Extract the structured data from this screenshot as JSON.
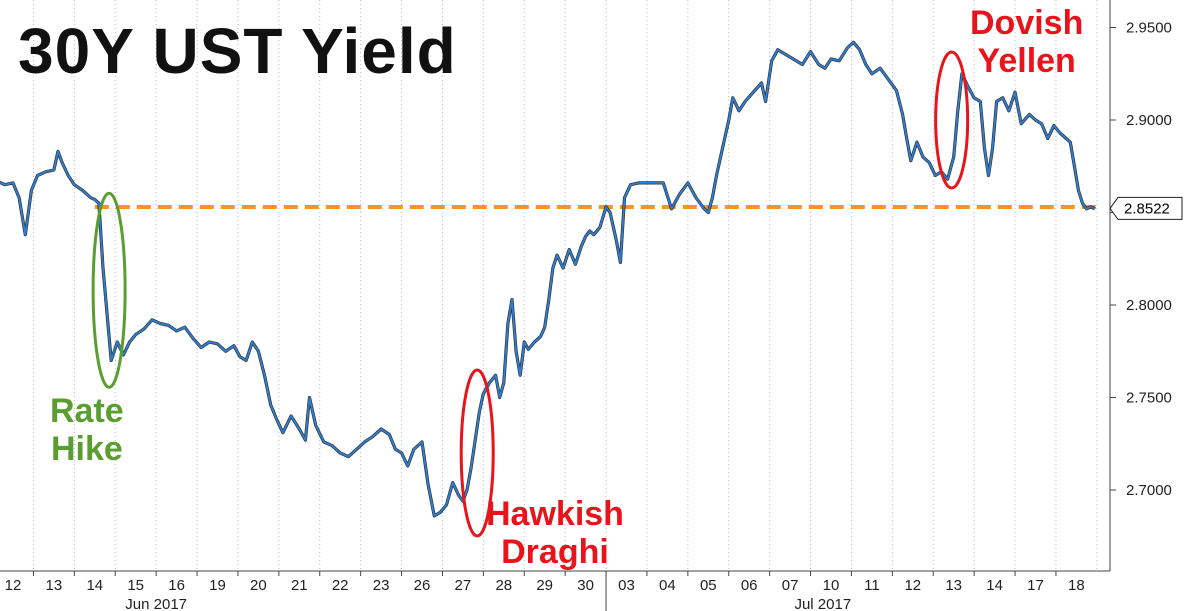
{
  "chart_data": {
    "type": "line",
    "title": "30Y UST Yield",
    "y_axis": {
      "side": "right",
      "ticks": [
        "2.9500",
        "2.9000",
        "2.8500",
        "2.8000",
        "2.7500",
        "2.7000"
      ],
      "tick_values": [
        2.95,
        2.9,
        2.85,
        2.8,
        2.75,
        2.7
      ],
      "ylim": [
        2.655,
        2.97
      ]
    },
    "x_axis": {
      "day_labels": [
        "12",
        "13",
        "14",
        "15",
        "16",
        "19",
        "20",
        "21",
        "22",
        "23",
        "26",
        "27",
        "28",
        "29",
        "30",
        "03",
        "04",
        "05",
        "06",
        "07",
        "10",
        "11",
        "12",
        "13",
        "14",
        "17",
        "18"
      ],
      "month_labels": [
        {
          "label": "Jun 2017",
          "index": 3.5
        },
        {
          "label": "Jul 2017",
          "index": 19.8
        }
      ],
      "month_divider_index": 14.5
    },
    "grid": "vertical dotted",
    "series": [
      {
        "color": "#2d7fd3",
        "points": [
          [
            -0.5,
            2.868
          ],
          [
            -0.2,
            2.865
          ],
          [
            0.0,
            2.866
          ],
          [
            0.15,
            2.858
          ],
          [
            0.3,
            2.838
          ],
          [
            0.45,
            2.862
          ],
          [
            0.6,
            2.87
          ],
          [
            0.8,
            2.872
          ],
          [
            1.0,
            2.873
          ],
          [
            1.1,
            2.883
          ],
          [
            1.2,
            2.877
          ],
          [
            1.35,
            2.87
          ],
          [
            1.5,
            2.865
          ],
          [
            1.7,
            2.862
          ],
          [
            1.9,
            2.858
          ],
          [
            2.0,
            2.857
          ],
          [
            2.1,
            2.855
          ],
          [
            2.2,
            2.82
          ],
          [
            2.3,
            2.795
          ],
          [
            2.4,
            2.77
          ],
          [
            2.55,
            2.78
          ],
          [
            2.7,
            2.773
          ],
          [
            2.85,
            2.78
          ],
          [
            3.0,
            2.784
          ],
          [
            3.2,
            2.787
          ],
          [
            3.4,
            2.792
          ],
          [
            3.6,
            2.79
          ],
          [
            3.8,
            2.789
          ],
          [
            4.0,
            2.786
          ],
          [
            4.2,
            2.788
          ],
          [
            4.4,
            2.782
          ],
          [
            4.6,
            2.777
          ],
          [
            4.8,
            2.78
          ],
          [
            5.0,
            2.779
          ],
          [
            5.2,
            2.775
          ],
          [
            5.4,
            2.778
          ],
          [
            5.55,
            2.772
          ],
          [
            5.7,
            2.77
          ],
          [
            5.85,
            2.78
          ],
          [
            6.0,
            2.775
          ],
          [
            6.15,
            2.762
          ],
          [
            6.3,
            2.746
          ],
          [
            6.45,
            2.738
          ],
          [
            6.6,
            2.731
          ],
          [
            6.8,
            2.74
          ],
          [
            7.0,
            2.733
          ],
          [
            7.15,
            2.727
          ],
          [
            7.25,
            2.75
          ],
          [
            7.4,
            2.735
          ],
          [
            7.6,
            2.726
          ],
          [
            7.8,
            2.724
          ],
          [
            8.0,
            2.72
          ],
          [
            8.2,
            2.718
          ],
          [
            8.4,
            2.722
          ],
          [
            8.6,
            2.726
          ],
          [
            8.8,
            2.729
          ],
          [
            9.0,
            2.733
          ],
          [
            9.2,
            2.73
          ],
          [
            9.35,
            2.722
          ],
          [
            9.5,
            2.72
          ],
          [
            9.65,
            2.713
          ],
          [
            9.8,
            2.722
          ],
          [
            10.0,
            2.726
          ],
          [
            10.15,
            2.703
          ],
          [
            10.3,
            2.686
          ],
          [
            10.45,
            2.688
          ],
          [
            10.6,
            2.692
          ],
          [
            10.75,
            2.704
          ],
          [
            10.9,
            2.697
          ],
          [
            11.0,
            2.694
          ],
          [
            11.1,
            2.7
          ],
          [
            11.2,
            2.712
          ],
          [
            11.3,
            2.727
          ],
          [
            11.4,
            2.742
          ],
          [
            11.5,
            2.752
          ],
          [
            11.65,
            2.758
          ],
          [
            11.8,
            2.762
          ],
          [
            11.9,
            2.75
          ],
          [
            12.0,
            2.758
          ],
          [
            12.1,
            2.79
          ],
          [
            12.2,
            2.803
          ],
          [
            12.3,
            2.775
          ],
          [
            12.4,
            2.762
          ],
          [
            12.5,
            2.78
          ],
          [
            12.6,
            2.776
          ],
          [
            12.75,
            2.78
          ],
          [
            12.9,
            2.783
          ],
          [
            13.0,
            2.788
          ],
          [
            13.1,
            2.803
          ],
          [
            13.2,
            2.82
          ],
          [
            13.3,
            2.827
          ],
          [
            13.45,
            2.82
          ],
          [
            13.6,
            2.83
          ],
          [
            13.75,
            2.822
          ],
          [
            13.9,
            2.832
          ],
          [
            14.0,
            2.837
          ],
          [
            14.1,
            2.84
          ],
          [
            14.2,
            2.838
          ],
          [
            14.35,
            2.842
          ],
          [
            14.5,
            2.853
          ],
          [
            14.6,
            2.85
          ],
          [
            14.75,
            2.835
          ],
          [
            14.85,
            2.823
          ],
          [
            14.95,
            2.858
          ],
          [
            15.1,
            2.865
          ],
          [
            15.3,
            2.866
          ],
          [
            15.5,
            2.866
          ],
          [
            15.7,
            2.866
          ],
          [
            15.9,
            2.866
          ],
          [
            16.1,
            2.852
          ],
          [
            16.3,
            2.86
          ],
          [
            16.5,
            2.866
          ],
          [
            16.7,
            2.858
          ],
          [
            16.9,
            2.852
          ],
          [
            17.0,
            2.85
          ],
          [
            17.1,
            2.858
          ],
          [
            17.2,
            2.87
          ],
          [
            17.35,
            2.885
          ],
          [
            17.5,
            2.9
          ],
          [
            17.6,
            2.912
          ],
          [
            17.75,
            2.905
          ],
          [
            17.9,
            2.91
          ],
          [
            18.1,
            2.915
          ],
          [
            18.3,
            2.92
          ],
          [
            18.4,
            2.91
          ],
          [
            18.55,
            2.932
          ],
          [
            18.7,
            2.938
          ],
          [
            19.0,
            2.934
          ],
          [
            19.3,
            2.93
          ],
          [
            19.5,
            2.937
          ],
          [
            19.7,
            2.93
          ],
          [
            19.85,
            2.928
          ],
          [
            20.0,
            2.933
          ],
          [
            20.2,
            2.932
          ],
          [
            20.4,
            2.939
          ],
          [
            20.55,
            2.942
          ],
          [
            20.7,
            2.938
          ],
          [
            20.85,
            2.93
          ],
          [
            21.0,
            2.925
          ],
          [
            21.2,
            2.928
          ],
          [
            21.4,
            2.922
          ],
          [
            21.6,
            2.916
          ],
          [
            21.75,
            2.903
          ],
          [
            21.85,
            2.89
          ],
          [
            21.95,
            2.878
          ],
          [
            22.1,
            2.888
          ],
          [
            22.25,
            2.88
          ],
          [
            22.4,
            2.877
          ],
          [
            22.55,
            2.87
          ],
          [
            22.7,
            2.872
          ],
          [
            22.85,
            2.868
          ],
          [
            23.0,
            2.88
          ],
          [
            23.1,
            2.905
          ],
          [
            23.2,
            2.925
          ],
          [
            23.35,
            2.918
          ],
          [
            23.5,
            2.912
          ],
          [
            23.65,
            2.91
          ],
          [
            23.75,
            2.885
          ],
          [
            23.85,
            2.87
          ],
          [
            23.95,
            2.885
          ],
          [
            24.05,
            2.91
          ],
          [
            24.2,
            2.912
          ],
          [
            24.35,
            2.905
          ],
          [
            24.5,
            2.915
          ],
          [
            24.65,
            2.898
          ],
          [
            24.85,
            2.903
          ],
          [
            25.0,
            2.9
          ],
          [
            25.15,
            2.898
          ],
          [
            25.3,
            2.89
          ],
          [
            25.45,
            2.897
          ],
          [
            25.6,
            2.893
          ],
          [
            25.75,
            2.89
          ],
          [
            25.85,
            2.888
          ],
          [
            25.95,
            2.875
          ],
          [
            26.05,
            2.862
          ],
          [
            26.15,
            2.855
          ],
          [
            26.25,
            2.852
          ],
          [
            26.35,
            2.853
          ],
          [
            26.45,
            2.852
          ]
        ]
      }
    ],
    "reference_line": {
      "value": 2.853,
      "color": "#f5961e",
      "style": "dashed"
    },
    "last_value": {
      "label": "2.8522",
      "value": 2.8522
    },
    "annotations": [
      {
        "lines": [
          "Rate",
          "Hike"
        ],
        "color": "#5a9e2f"
      },
      {
        "lines": [
          "Hawkish",
          "Draghi"
        ],
        "color": "#e8141b"
      },
      {
        "lines": [
          "Dovish",
          "Yellen"
        ],
        "color": "#e8141b"
      }
    ]
  }
}
